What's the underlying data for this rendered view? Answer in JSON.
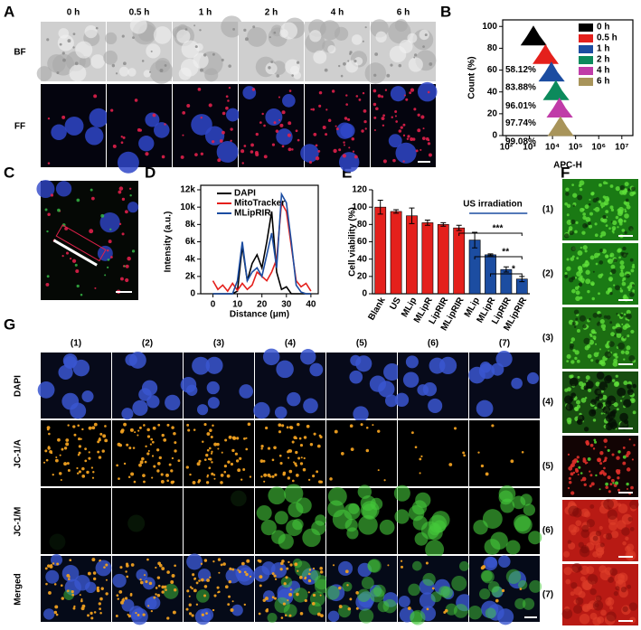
{
  "panel_labels": [
    "A",
    "B",
    "C",
    "D",
    "E",
    "F",
    "G"
  ],
  "figure_a": {
    "time_labels": [
      "0 h",
      "0.5 h",
      "1 h",
      "2 h",
      "4 h",
      "6 h"
    ],
    "row_labels": [
      "BF",
      "FF"
    ]
  },
  "chart_data": [
    {
      "type": "histogram",
      "x_label": "APC-H",
      "y_label": "Count (%)",
      "log_x": true,
      "xlim": [
        70,
        30000000
      ],
      "xticks": [
        {
          "value": 100,
          "label": "10²"
        },
        {
          "value": 1000,
          "label": "10³"
        },
        {
          "value": 10000,
          "label": "10⁴"
        },
        {
          "value": 100000,
          "label": "10⁵"
        },
        {
          "value": 1000000,
          "label": "10⁶"
        },
        {
          "value": 10000000,
          "label": "10⁷"
        }
      ],
      "ylim": [
        0,
        106
      ],
      "yticks": [
        0,
        20,
        40,
        60,
        80,
        100
      ],
      "legend": "top-right",
      "series": [
        {
          "name": "0 h",
          "color": "#000000",
          "x": [
            450,
            820,
            1500,
            2700,
            5200
          ],
          "values": [
            83,
            91,
            100,
            91,
            83
          ]
        },
        {
          "name": "0.5 h",
          "color": "#e4201c",
          "x": [
            1500,
            2700,
            5000,
            9000,
            17000
          ],
          "values": [
            66,
            74,
            83,
            74,
            66
          ],
          "annotation": "58.12%"
        },
        {
          "name": "1 h",
          "color": "#1c4da1",
          "x": [
            2700,
            5000,
            9000,
            16000,
            31000
          ],
          "values": [
            50,
            58,
            67,
            58,
            50
          ],
          "annotation": "83.88%"
        },
        {
          "name": "2 h",
          "color": "#0c8a5c",
          "x": [
            4200,
            7700,
            14000,
            25000,
            49000
          ],
          "values": [
            33,
            41,
            50,
            41,
            33
          ],
          "annotation": "96.01%"
        },
        {
          "name": "4 h",
          "color": "#c03ca8",
          "x": [
            6000,
            11000,
            20000,
            36000,
            70000
          ],
          "values": [
            17,
            25,
            34,
            25,
            17
          ],
          "annotation": "97.74%"
        },
        {
          "name": "6 h",
          "color": "#a8945a",
          "x": [
            6600,
            12000,
            22000,
            40000,
            77000
          ],
          "values": [
            0,
            8,
            17,
            8,
            0
          ],
          "annotation": "99.08%"
        }
      ]
    },
    {
      "type": "line",
      "x_label": "Distance (μm)",
      "y_label": "Intensity (a.u.)",
      "legend": "top-left",
      "x": [
        0,
        2,
        4,
        6,
        8,
        10,
        12,
        14,
        16,
        18,
        20,
        22,
        24,
        26,
        28,
        30,
        32,
        34,
        36,
        38,
        40
      ],
      "xlim": [
        -5,
        43
      ],
      "xticks": [
        0,
        10,
        20,
        30,
        40
      ],
      "ylim": [
        0,
        12000
      ],
      "yticks": [
        0,
        {
          "value": 2000,
          "label": "2k"
        },
        {
          "value": 4000,
          "label": "4k"
        },
        {
          "value": 6000,
          "label": "6k"
        },
        {
          "value": 8000,
          "label": "8k"
        },
        {
          "value": 10000,
          "label": "10k"
        },
        {
          "value": 12000,
          "label": "12k"
        }
      ],
      "series": [
        {
          "name": "DAPI",
          "color": "#000000",
          "values": [
            0,
            0,
            0,
            0,
            0,
            300,
            5500,
            1500,
            3500,
            4500,
            3000,
            6000,
            9500,
            2500,
            500,
            800,
            0,
            0,
            0,
            0,
            0
          ]
        },
        {
          "name": "MitoTracker",
          "color": "#e4201c",
          "values": [
            1500,
            500,
            1000,
            300,
            1200,
            400,
            1200,
            500,
            1000,
            2500,
            2000,
            1500,
            2500,
            4000,
            10500,
            9500,
            5500,
            1500,
            800,
            1200,
            300
          ]
        },
        {
          "name": "MLipRIR",
          "color": "#1c4da1",
          "values": [
            0,
            0,
            0,
            0,
            0,
            1500,
            6000,
            1500,
            2500,
            3000,
            2000,
            4500,
            7000,
            3000,
            11500,
            10500,
            6000,
            1000,
            200,
            0,
            0
          ]
        }
      ]
    },
    {
      "type": "bar",
      "y_label": "Cell viability (%)",
      "categories": [
        "Blank",
        "US",
        "MLip",
        "MLipR",
        "LipRIR",
        "MLipRIR",
        "MLip",
        "MLipR",
        "LipRIR",
        "MLipRIR"
      ],
      "values": [
        100,
        95,
        90,
        82,
        80,
        76,
        62,
        45,
        28,
        17
      ],
      "errors": [
        8,
        2,
        9,
        3,
        2,
        3,
        9,
        1,
        3,
        3
      ],
      "colors": [
        "#e4201c",
        "#e4201c",
        "#e4201c",
        "#e4201c",
        "#e4201c",
        "#e4201c",
        "#1c4da1",
        "#1c4da1",
        "#1c4da1",
        "#1c4da1"
      ],
      "ylim": [
        0,
        120
      ],
      "yticks": [
        0,
        20,
        40,
        60,
        80,
        100,
        120
      ],
      "annotation": "US irradiation",
      "significance": [
        "***",
        "**",
        "*"
      ]
    }
  ],
  "figure_f": {
    "labels": [
      "(1)",
      "(2)",
      "(3)",
      "(4)",
      "(5)",
      "(6)",
      "(7)"
    ]
  },
  "figure_g": {
    "column_labels": [
      "(1)",
      "(2)",
      "(3)",
      "(4)",
      "(5)",
      "(6)",
      "(7)"
    ],
    "row_labels": [
      "DAPI",
      "JC-1/A",
      "JC-1/M",
      "Merged"
    ]
  }
}
